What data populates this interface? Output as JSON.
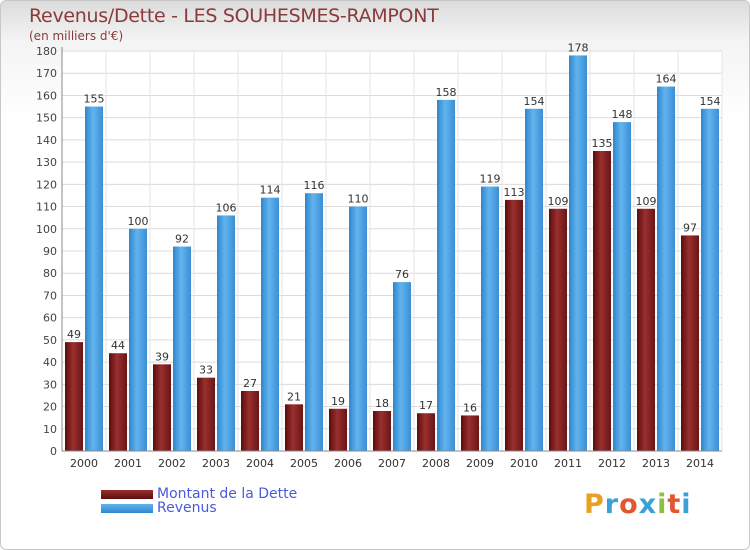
{
  "title": "Revenus/Dette - LES SOUHESMES-RAMPONT",
  "subtitle": "(en milliers d'€)",
  "logo": {
    "letters": [
      "P",
      "r",
      "o",
      "x",
      "i",
      "t",
      "i"
    ],
    "colors": [
      "#e8a020",
      "#3aa0d8",
      "#e05830",
      "#3aa0d8",
      "#8cc040",
      "#e05830",
      "#3aa0d8"
    ]
  },
  "chart_data": {
    "type": "bar",
    "categories": [
      "2000",
      "2001",
      "2002",
      "2003",
      "2004",
      "2005",
      "2006",
      "2007",
      "2008",
      "2009",
      "2010",
      "2011",
      "2012",
      "2013",
      "2014"
    ],
    "series": [
      {
        "name": "Montant de la Dette",
        "color": "#7a1c1c",
        "values": [
          49,
          44,
          39,
          33,
          27,
          21,
          19,
          18,
          17,
          16,
          113,
          109,
          135,
          109,
          97
        ]
      },
      {
        "name": "Revenus",
        "color": "#4aa0e0",
        "values": [
          155,
          100,
          92,
          106,
          114,
          116,
          110,
          76,
          158,
          119,
          154,
          178,
          148,
          164,
          154
        ]
      }
    ],
    "ylim": [
      0,
      180
    ],
    "yticks": [
      0,
      10,
      20,
      30,
      40,
      50,
      60,
      70,
      80,
      90,
      100,
      110,
      120,
      130,
      140,
      150,
      160,
      170,
      180
    ],
    "grid": true,
    "legend": "bottom-left"
  }
}
